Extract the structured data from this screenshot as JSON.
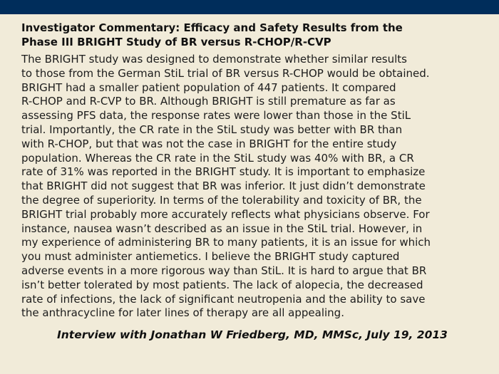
{
  "slide": {
    "title_lines": [
      "Investigator Commentary: Efficacy and Safety Results from the",
      "Phase III BRIGHT Study of BR versus R-CHOP/R-CVP"
    ],
    "body_lines": [
      "The BRIGHT study was designed to demonstrate whether similar results",
      "to those from the German StiL trial of BR versus R-CHOP would be obtained.",
      "BRIGHT had a smaller patient population of 447 patients. It compared",
      "R-CHOP and R-CVP to BR. Although BRIGHT is still premature as far as",
      "assessing PFS data, the response rates were lower than those in the StiL",
      "trial. Importantly, the CR rate in the StiL study was better with BR than",
      "with R-CHOP, but that was not the case in BRIGHT for the entire study",
      "population. Whereas the CR rate in the StiL study was 40% with BR, a CR",
      "rate of 31% was reported in the BRIGHT study. It is important to emphasize",
      "that BRIGHT did not suggest that BR was inferior. It just didn’t demonstrate",
      "the degree of superiority. In terms of the tolerability and toxicity of BR, the",
      "BRIGHT trial probably more accurately reflects what physicians observe. For",
      "instance, nausea wasn’t described as an issue in the StiL trial. However, in",
      "my experience of administering BR to many patients, it is an issue for which",
      "you must administer antiemetics. I believe the BRIGHT study captured",
      "adverse events in a more rigorous way than StiL. It is hard to argue that BR",
      "isn’t better tolerated by most patients. The lack of alopecia, the decreased",
      "rate of infections, the lack of significant neutropenia and the ability to save",
      "the anthracycline for later lines of therapy are all appealing."
    ],
    "citation": "Interview with Jonathan W Friedberg, MD, MMSc, July 19, 2013"
  }
}
